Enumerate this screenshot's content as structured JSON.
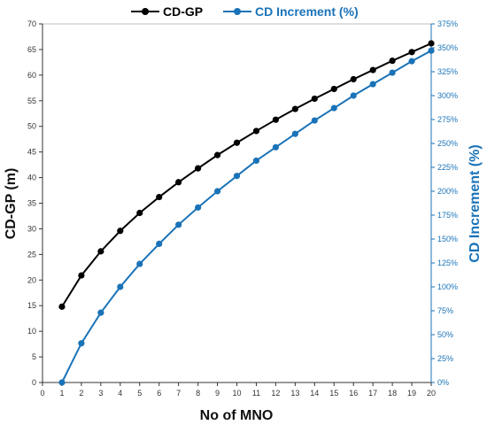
{
  "chart_data": {
    "type": "line",
    "xlabel": "No of MNO",
    "ylabel_left": "CD-GP (m)",
    "ylabel_right": "CD Increment (%)",
    "x_ticks": [
      0,
      1,
      2,
      3,
      4,
      5,
      6,
      7,
      8,
      9,
      10,
      11,
      12,
      13,
      14,
      15,
      16,
      17,
      18,
      19,
      20
    ],
    "xlim": [
      0,
      20
    ],
    "ylim_left": [
      0,
      70
    ],
    "ylim_right": [
      0,
      375
    ],
    "y_left_ticks": [
      0,
      5,
      10,
      15,
      20,
      25,
      30,
      35,
      40,
      45,
      50,
      55,
      60,
      65,
      70
    ],
    "y_right_ticks": [
      "0%",
      "25%",
      "50%",
      "75%",
      "100%",
      "125%",
      "150%",
      "175%",
      "200%",
      "225%",
      "250%",
      "275%",
      "300%",
      "325%",
      "350%",
      "375%"
    ],
    "legend_position": "top",
    "grid": false,
    "colors": {
      "cdgp": "#000000",
      "increment": "#1a73b8"
    },
    "series": [
      {
        "name": "CD-GP",
        "axis": "left",
        "x": [
          1,
          2,
          3,
          4,
          5,
          6,
          7,
          8,
          9,
          10,
          11,
          12,
          13,
          14,
          15,
          16,
          17,
          18,
          19,
          20
        ],
        "values": [
          14.8,
          20.9,
          25.6,
          29.6,
          33.1,
          36.2,
          39.1,
          41.8,
          44.4,
          46.8,
          49.1,
          51.3,
          53.4,
          55.4,
          57.3,
          59.2,
          61.0,
          62.8,
          64.5,
          66.2
        ]
      },
      {
        "name": "CD Increment (%)",
        "axis": "right",
        "x": [
          1,
          2,
          3,
          4,
          5,
          6,
          7,
          8,
          9,
          10,
          11,
          12,
          13,
          14,
          15,
          16,
          17,
          18,
          19,
          20
        ],
        "values": [
          0,
          41,
          73,
          100,
          124,
          145,
          165,
          183,
          200,
          216,
          232,
          246,
          260,
          274,
          287,
          300,
          312,
          324,
          336,
          347
        ]
      }
    ]
  }
}
